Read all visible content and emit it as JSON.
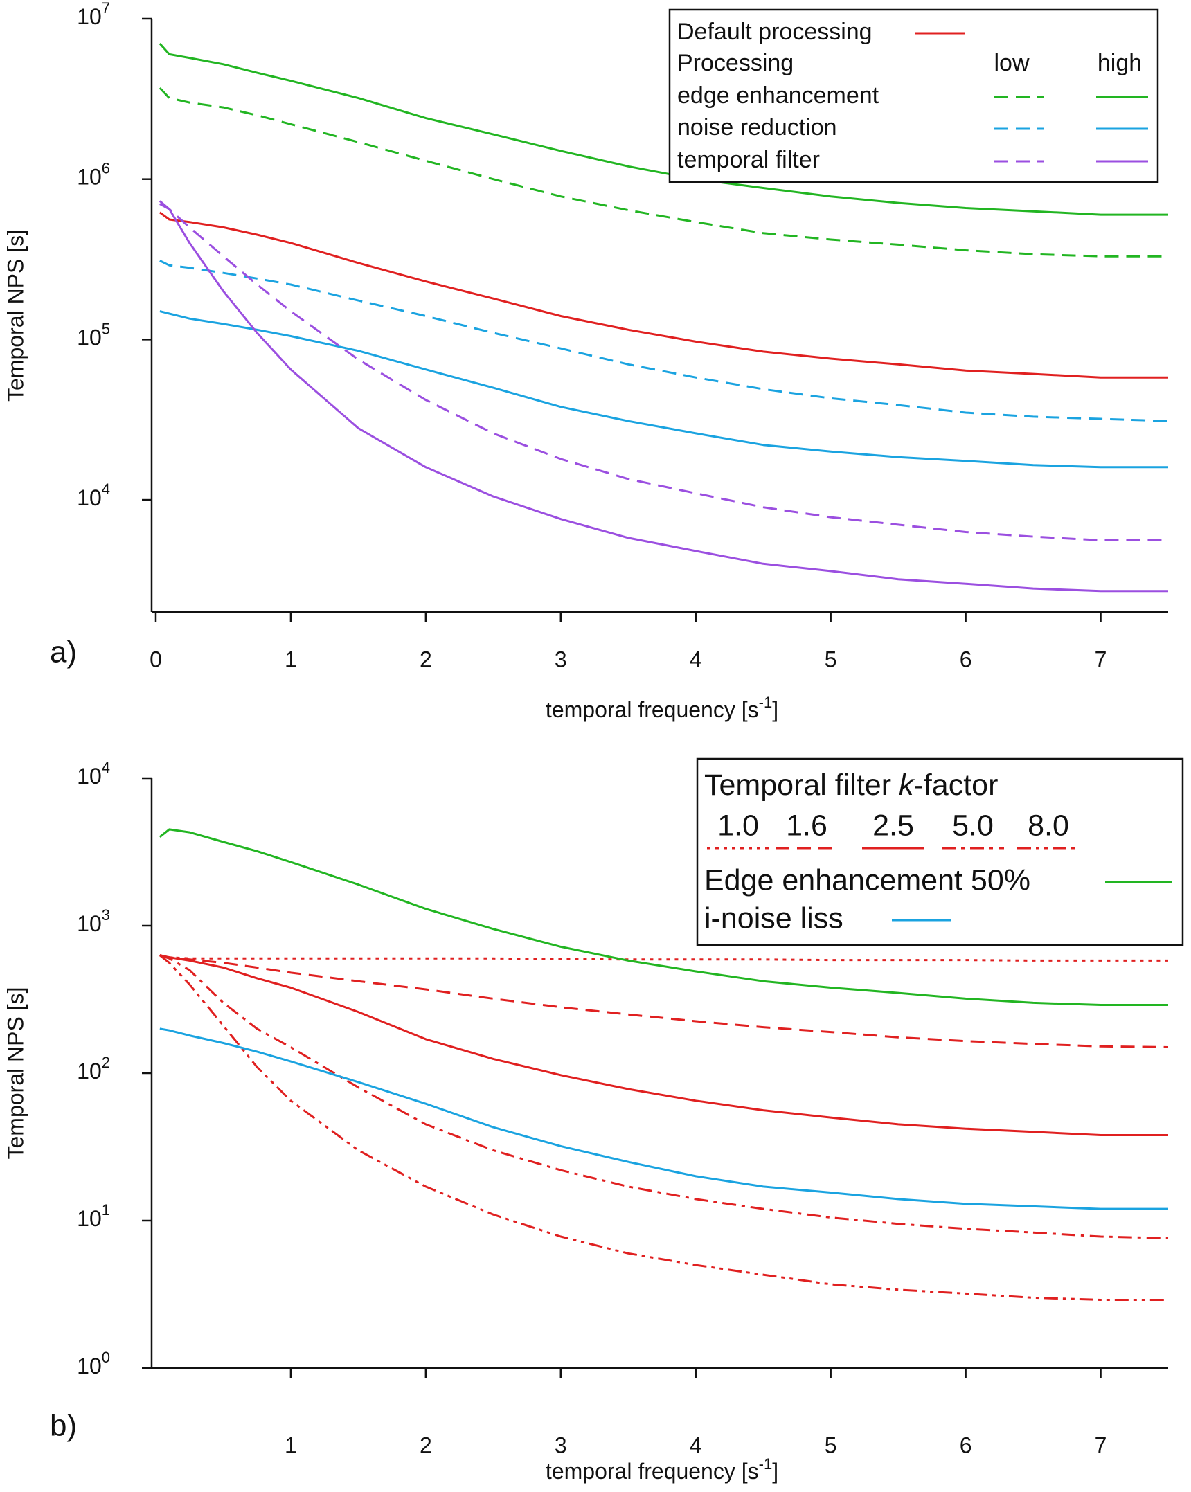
{
  "chart_data": [
    {
      "type": "line",
      "panel_label": "a)",
      "y_label": "Temporal NPS [s]",
      "x_label": [
        "temporal frequency [s",
        "-1",
        "]"
      ],
      "log_y": true,
      "xlim": [
        0,
        7.5
      ],
      "ylim": [
        2000,
        10000000
      ],
      "xticks": [
        0,
        1,
        2,
        3,
        4,
        5,
        6,
        7
      ],
      "yticks": [
        {
          "value": 10000,
          "label": "10",
          "exponent": "4"
        },
        {
          "value": 100000,
          "label": "10",
          "exponent": "5"
        },
        {
          "value": 1000000,
          "label": "10",
          "exponent": "6"
        },
        {
          "value": 10000000,
          "label": "10",
          "exponent": "7"
        }
      ],
      "legend": {
        "title": "Processing",
        "columns": [
          "low",
          "high"
        ]
      },
      "x": [
        0.03,
        0.1,
        0.25,
        0.5,
        0.75,
        1,
        1.5,
        2,
        2.5,
        3,
        3.5,
        4,
        4.5,
        5,
        5.5,
        6,
        6.5,
        7,
        7.5
      ],
      "series": [
        {
          "name": "Default processing",
          "color": "#e02020",
          "dash": "solid",
          "values": [
            620000,
            560000,
            540000,
            500000,
            450000,
            400000,
            300000,
            230000,
            180000,
            140000,
            115000,
            97000,
            84000,
            76000,
            70000,
            64000,
            61000,
            58000,
            58000
          ]
        },
        {
          "name": "edge enhancement",
          "color": "#22b522",
          "dash": "dashed",
          "values": [
            3700000,
            3200000,
            3000000,
            2800000,
            2500000,
            2200000,
            1700000,
            1300000,
            1000000,
            780000,
            640000,
            540000,
            460000,
            420000,
            390000,
            360000,
            340000,
            330000,
            330000
          ]
        },
        {
          "name": "edge enhancement",
          "color": "#22b522",
          "dash": "solid",
          "values": [
            7000000,
            6000000,
            5700000,
            5200000,
            4600000,
            4100000,
            3200000,
            2400000,
            1900000,
            1500000,
            1200000,
            1000000,
            880000,
            780000,
            710000,
            660000,
            630000,
            600000,
            600000
          ]
        },
        {
          "name": "noise reduction",
          "color": "#1aa3e0",
          "dash": "dashed",
          "values": [
            310000,
            290000,
            280000,
            260000,
            240000,
            220000,
            175000,
            140000,
            110000,
            88000,
            70000,
            58000,
            49000,
            43000,
            39000,
            35000,
            33000,
            32000,
            31000
          ]
        },
        {
          "name": "noise reduction",
          "color": "#1aa3e0",
          "dash": "solid",
          "values": [
            150000,
            145000,
            135000,
            125000,
            115000,
            105000,
            85000,
            65000,
            50000,
            38000,
            31000,
            26000,
            22000,
            20000,
            18500,
            17500,
            16500,
            16000,
            16000
          ]
        },
        {
          "name": "temporal filter",
          "color": "#9b4fe0",
          "dash": "dashed",
          "values": [
            700000,
            650000,
            500000,
            330000,
            220000,
            150000,
            75000,
            42000,
            26000,
            18000,
            13500,
            11000,
            9000,
            7800,
            7000,
            6300,
            5900,
            5600,
            5600
          ]
        },
        {
          "name": "temporal filter",
          "color": "#9b4fe0",
          "dash": "solid",
          "values": [
            730000,
            650000,
            400000,
            200000,
            110000,
            65000,
            28000,
            16000,
            10500,
            7600,
            5800,
            4800,
            4000,
            3600,
            3200,
            3000,
            2800,
            2700,
            2700
          ]
        }
      ]
    },
    {
      "type": "line",
      "panel_label": "b)",
      "y_label": "Temporal NPS [s]",
      "x_label": [
        "temporal frequency [s",
        "-1",
        "]"
      ],
      "log_y": true,
      "xlim": [
        0,
        7.5
      ],
      "ylim": [
        1,
        10000
      ],
      "xticks": [
        1,
        2,
        3,
        4,
        5,
        6,
        7
      ],
      "yticks": [
        {
          "value": 1,
          "label": "10",
          "exponent": "0"
        },
        {
          "value": 10,
          "label": "10",
          "exponent": "1"
        },
        {
          "value": 100,
          "label": "10",
          "exponent": "2"
        },
        {
          "value": 1000,
          "label": "10",
          "exponent": "3"
        },
        {
          "value": 10000,
          "label": "10",
          "exponent": "4"
        }
      ],
      "legend": {
        "title_parts": [
          "Temporal filter",
          "k",
          "-factor"
        ]
      },
      "x": [
        0.03,
        0.1,
        0.25,
        0.5,
        0.75,
        1,
        1.5,
        2,
        2.5,
        3,
        3.5,
        4,
        4.5,
        5,
        5.5,
        6,
        6.5,
        7,
        7.5
      ],
      "series": [
        {
          "name": "1.0",
          "color": "#e02020",
          "dash": "dotted",
          "values": [
            630,
            610,
            600,
            600,
            600,
            600,
            600,
            600,
            600,
            595,
            590,
            590,
            590,
            585,
            585,
            585,
            580,
            580,
            580
          ]
        },
        {
          "name": "1.6",
          "color": "#e02020",
          "dash": "dashed",
          "values": [
            630,
            610,
            590,
            560,
            520,
            480,
            420,
            370,
            320,
            280,
            250,
            225,
            205,
            190,
            175,
            165,
            158,
            152,
            150
          ]
        },
        {
          "name": "2.5",
          "color": "#e02020",
          "dash": "solid",
          "values": [
            630,
            610,
            580,
            520,
            440,
            380,
            260,
            170,
            125,
            97,
            78,
            65,
            56,
            50,
            45,
            42,
            40,
            38,
            38
          ]
        },
        {
          "name": "5.0",
          "color": "#e02020",
          "dash": "dashdot",
          "values": [
            630,
            600,
            500,
            300,
            200,
            150,
            80,
            45,
            30,
            22,
            17,
            14,
            12,
            10.5,
            9.5,
            8.8,
            8.3,
            7.8,
            7.6
          ]
        },
        {
          "name": "8.0",
          "color": "#e02020",
          "dash": "dashdotdot",
          "values": [
            630,
            560,
            400,
            210,
            110,
            65,
            30,
            17,
            11,
            7.8,
            6,
            5,
            4.3,
            3.7,
            3.4,
            3.2,
            3,
            2.9,
            2.9
          ]
        },
        {
          "name": "Edge enhancement 50%",
          "color": "#22b522",
          "dash": "solid",
          "values": [
            4000,
            4500,
            4300,
            3700,
            3200,
            2700,
            1900,
            1300,
            950,
            720,
            580,
            490,
            420,
            380,
            350,
            320,
            300,
            290,
            290
          ]
        },
        {
          "name": "i-noise liss",
          "color": "#1aa3e0",
          "dash": "solid",
          "values": [
            200,
            195,
            180,
            160,
            140,
            120,
            87,
            62,
            43,
            32,
            25,
            20,
            17,
            15.5,
            14,
            13,
            12.5,
            12,
            12
          ]
        }
      ]
    }
  ]
}
